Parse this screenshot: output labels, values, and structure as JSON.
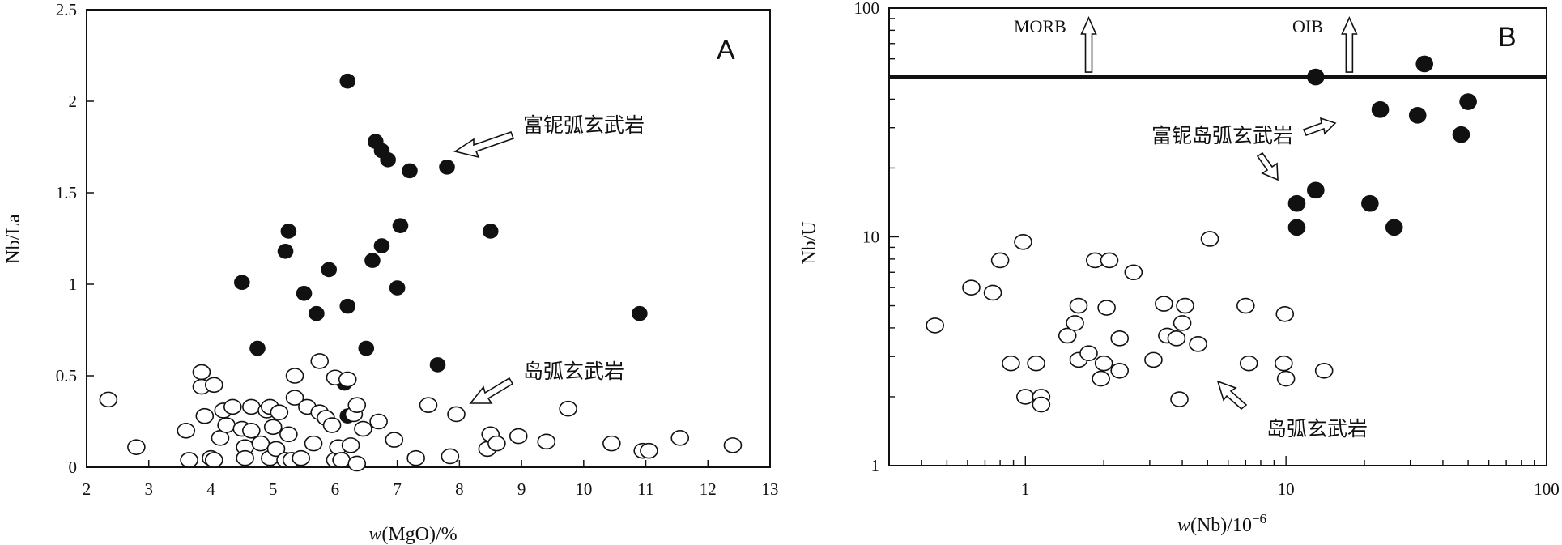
{
  "chart_data": [
    {
      "panel": "A",
      "type": "scatter",
      "xlabel_prefix": "w",
      "xlabel_suffix": "(MgO)/%",
      "ylabel": "Nb/La",
      "xlim": [
        2,
        13
      ],
      "ylim": [
        0,
        2.5
      ],
      "x_ticks": [
        "2",
        "3",
        "4",
        "5",
        "6",
        "7",
        "8",
        "9",
        "10",
        "11",
        "12",
        "13"
      ],
      "y_ticks": [
        "0",
        "0.5",
        "1",
        "1.5",
        "2",
        "2.5"
      ],
      "series": [
        {
          "name": "富铌弧玄武岩",
          "marker": "filled",
          "points": [
            [
              6.2,
              2.11
            ],
            [
              6.65,
              1.78
            ],
            [
              6.75,
              1.73
            ],
            [
              6.85,
              1.68
            ],
            [
              7.2,
              1.62
            ],
            [
              7.8,
              1.64
            ],
            [
              5.25,
              1.29
            ],
            [
              7.05,
              1.32
            ],
            [
              8.5,
              1.29
            ],
            [
              5.2,
              1.18
            ],
            [
              6.75,
              1.21
            ],
            [
              5.9,
              1.08
            ],
            [
              6.6,
              1.13
            ],
            [
              4.5,
              1.01
            ],
            [
              5.5,
              0.95
            ],
            [
              7.0,
              0.98
            ],
            [
              6.2,
              0.88
            ],
            [
              5.7,
              0.84
            ],
            [
              10.9,
              0.84
            ],
            [
              4.75,
              0.65
            ],
            [
              6.5,
              0.65
            ],
            [
              7.65,
              0.56
            ],
            [
              6.15,
              0.46
            ],
            [
              6.2,
              0.28
            ]
          ]
        },
        {
          "name": "岛弧玄武岩",
          "marker": "open",
          "points": [
            [
              2.35,
              0.37
            ],
            [
              2.8,
              0.11
            ],
            [
              3.6,
              0.2
            ],
            [
              3.65,
              0.04
            ],
            [
              3.85,
              0.52
            ],
            [
              3.85,
              0.44
            ],
            [
              3.9,
              0.28
            ],
            [
              4.0,
              0.05
            ],
            [
              4.05,
              0.04
            ],
            [
              4.05,
              0.45
            ],
            [
              4.15,
              0.16
            ],
            [
              4.2,
              0.31
            ],
            [
              4.25,
              0.23
            ],
            [
              4.35,
              0.33
            ],
            [
              4.5,
              0.21
            ],
            [
              4.55,
              0.11
            ],
            [
              4.55,
              0.05
            ],
            [
              4.65,
              0.33
            ],
            [
              4.65,
              0.2
            ],
            [
              4.8,
              0.13
            ],
            [
              4.9,
              0.31
            ],
            [
              4.95,
              0.33
            ],
            [
              4.95,
              0.05
            ],
            [
              5.0,
              0.22
            ],
            [
              5.05,
              0.1
            ],
            [
              5.1,
              0.3
            ],
            [
              5.2,
              0.04
            ],
            [
              5.25,
              0.18
            ],
            [
              5.3,
              0.04
            ],
            [
              5.35,
              0.38
            ],
            [
              5.35,
              0.5
            ],
            [
              5.45,
              0.05
            ],
            [
              5.55,
              0.33
            ],
            [
              5.65,
              0.13
            ],
            [
              5.75,
              0.58
            ],
            [
              5.75,
              0.3
            ],
            [
              5.85,
              0.27
            ],
            [
              5.95,
              0.23
            ],
            [
              6.0,
              0.49
            ],
            [
              6.0,
              0.04
            ],
            [
              6.05,
              0.11
            ],
            [
              6.1,
              0.04
            ],
            [
              6.2,
              0.48
            ],
            [
              6.25,
              0.12
            ],
            [
              6.3,
              0.29
            ],
            [
              6.35,
              0.02
            ],
            [
              6.35,
              0.34
            ],
            [
              6.45,
              0.21
            ],
            [
              6.7,
              0.25
            ],
            [
              6.95,
              0.15
            ],
            [
              7.3,
              0.05
            ],
            [
              7.5,
              0.34
            ],
            [
              7.85,
              0.06
            ],
            [
              7.95,
              0.29
            ],
            [
              8.45,
              0.1
            ],
            [
              8.5,
              0.18
            ],
            [
              8.6,
              0.13
            ],
            [
              8.95,
              0.17
            ],
            [
              9.4,
              0.14
            ],
            [
              9.75,
              0.32
            ],
            [
              10.45,
              0.13
            ],
            [
              10.95,
              0.09
            ],
            [
              11.05,
              0.09
            ],
            [
              11.55,
              0.16
            ],
            [
              12.4,
              0.12
            ]
          ]
        }
      ],
      "annotations": [
        {
          "text": "富铌弧玄武岩",
          "arrow_from": [
            8.4,
            1.75
          ],
          "arrow_to": [
            7.5,
            1.64
          ]
        },
        {
          "text": "岛弧玄武岩",
          "arrow_from": [
            8.4,
            0.47
          ],
          "arrow_to": [
            7.8,
            0.35
          ]
        }
      ]
    },
    {
      "panel": "B",
      "type": "scatter",
      "xlabel_prefix": "w",
      "xlabel_suffix": "(Nb)/10",
      "xlabel_exp": "−6",
      "ylabel": "Nb/U",
      "xscale": "log",
      "yscale": "log",
      "xlim": [
        0.3,
        100
      ],
      "ylim": [
        1,
        100
      ],
      "x_ticks": [
        "1",
        "10",
        "100"
      ],
      "y_ticks": [
        "1",
        "10",
        "100"
      ],
      "reference_line_y": 50,
      "series": [
        {
          "name": "富铌岛弧玄武岩",
          "marker": "filled",
          "points": [
            [
              13.0,
              50
            ],
            [
              34.0,
              57
            ],
            [
              50.0,
              39
            ],
            [
              23.0,
              36
            ],
            [
              32.0,
              34
            ],
            [
              47.0,
              28
            ],
            [
              13.0,
              16
            ],
            [
              11.0,
              14
            ],
            [
              21.0,
              14
            ],
            [
              11.0,
              11
            ],
            [
              26.0,
              11
            ]
          ]
        },
        {
          "name": "岛弧玄武岩",
          "marker": "open",
          "points": [
            [
              0.45,
              4.1
            ],
            [
              0.62,
              6.0
            ],
            [
              0.75,
              5.7
            ],
            [
              0.8,
              7.9
            ],
            [
              0.98,
              9.5
            ],
            [
              0.88,
              2.8
            ],
            [
              1.0,
              2.0
            ],
            [
              1.15,
              2.0
            ],
            [
              1.15,
              1.85
            ],
            [
              1.1,
              2.8
            ],
            [
              1.45,
              3.7
            ],
            [
              1.55,
              4.2
            ],
            [
              1.6,
              5.0
            ],
            [
              1.6,
              2.9
            ],
            [
              1.75,
              3.1
            ],
            [
              1.85,
              7.9
            ],
            [
              1.95,
              2.4
            ],
            [
              2.0,
              2.8
            ],
            [
              2.05,
              4.9
            ],
            [
              2.1,
              7.9
            ],
            [
              2.3,
              2.6
            ],
            [
              2.3,
              3.6
            ],
            [
              2.6,
              7.0
            ],
            [
              3.1,
              2.9
            ],
            [
              3.4,
              5.1
            ],
            [
              3.5,
              3.7
            ],
            [
              3.8,
              3.6
            ],
            [
              3.9,
              1.95
            ],
            [
              4.0,
              4.2
            ],
            [
              4.1,
              5.0
            ],
            [
              4.6,
              3.4
            ],
            [
              5.1,
              9.8
            ],
            [
              7.0,
              5.0
            ],
            [
              7.2,
              2.8
            ],
            [
              9.8,
              2.8
            ],
            [
              10.0,
              2.4
            ],
            [
              9.9,
              4.6
            ],
            [
              14.0,
              2.6
            ]
          ]
        }
      ],
      "annotations": [
        {
          "text": "MORB",
          "arrow_x": 1.75
        },
        {
          "text": "OIB",
          "arrow_x": 17.5
        },
        {
          "text": "富铌岛弧玄武岩"
        },
        {
          "text": "岛弧玄武岩"
        }
      ]
    }
  ]
}
